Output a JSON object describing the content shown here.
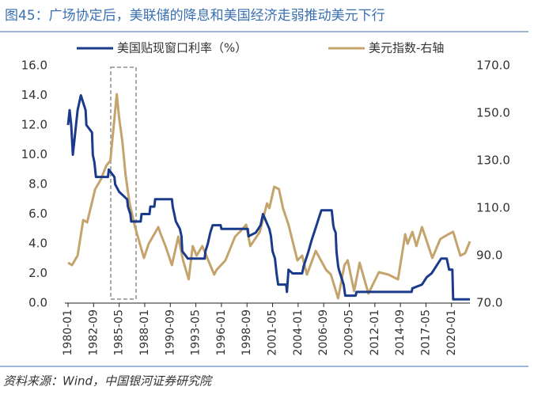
{
  "chart_data": {
    "type": "line",
    "title": "图45：广场协定后，美联储的降息和美国经济走弱推动美元下行",
    "source": "资料来源：Wind，中国银河证券研究院",
    "xlim": [
      "1980-01",
      "2021-12"
    ],
    "xticks": [
      "1980-01",
      "1982-09",
      "1985-05",
      "1988-01",
      "1990-09",
      "1993-05",
      "1996-01",
      "1998-09",
      "2001-05",
      "2004-01",
      "2006-09",
      "2009-05",
      "2012-01",
      "2014-09",
      "2017-05",
      "2020-01"
    ],
    "ylim": [
      0,
      16
    ],
    "yticks": [
      {
        "value": 0,
        "label": "0.0"
      },
      {
        "value": 2,
        "label": "2.0"
      },
      {
        "value": 4,
        "label": "4.0"
      },
      {
        "value": 6,
        "label": "6.0"
      },
      {
        "value": 8,
        "label": "8.0"
      },
      {
        "value": 10,
        "label": "10.0"
      },
      {
        "value": 12,
        "label": "12.0"
      },
      {
        "value": 14,
        "label": "14.0"
      },
      {
        "value": 16,
        "label": "16.0"
      }
    ],
    "y2lim": [
      70,
      170
    ],
    "y2ticks": [
      {
        "value": 70,
        "label": "70.0"
      },
      {
        "value": 90,
        "label": "90.0"
      },
      {
        "value": 110,
        "label": "110.0"
      },
      {
        "value": 130,
        "label": "130.0"
      },
      {
        "value": 150,
        "label": "150.0"
      },
      {
        "value": 170,
        "label": "170.0"
      }
    ],
    "series": [
      {
        "name": "美国贴现窗口利率（%）",
        "color": "#1a3a8c",
        "x": [
          "1980-01",
          "1980-03",
          "1980-05",
          "1980-07",
          "1980-09",
          "1980-11",
          "1981-01",
          "1981-05",
          "1981-11",
          "1981-12",
          "1982-07",
          "1982-08",
          "1982-10",
          "1982-12",
          "1984-03",
          "1984-04",
          "1984-11",
          "1984-12",
          "1985-05",
          "1986-03",
          "1986-04",
          "1986-07",
          "1986-08",
          "1987-08",
          "1987-09",
          "1988-07",
          "1988-08",
          "1989-01",
          "1989-02",
          "1990-11",
          "1990-12",
          "1991-02",
          "1991-04",
          "1991-09",
          "1991-11",
          "1991-12",
          "1992-07",
          "1994-04",
          "1994-05",
          "1994-08",
          "1994-11",
          "1995-02",
          "1995-12",
          "1996-01",
          "1998-10",
          "1998-11",
          "1999-08",
          "1999-11",
          "2000-02",
          "2000-03",
          "2000-05",
          "2001-01",
          "2001-03",
          "2001-05",
          "2001-08",
          "2001-09",
          "2001-10",
          "2001-12",
          "2002-10",
          "2002-11",
          "2003-01",
          "2003-06",
          "2004-06",
          "2004-08",
          "2004-11",
          "2005-02",
          "2005-06",
          "2005-09",
          "2005-12",
          "2006-03",
          "2006-06",
          "2007-07",
          "2007-08",
          "2007-09",
          "2007-10",
          "2007-12",
          "2008-01",
          "2008-03",
          "2008-04",
          "2008-10",
          "2008-12",
          "2010-01",
          "2010-02",
          "2015-11",
          "2015-12",
          "2016-12",
          "2017-03",
          "2017-06",
          "2017-12",
          "2018-03",
          "2018-06",
          "2018-09",
          "2018-12",
          "2019-07",
          "2019-08",
          "2019-09",
          "2019-10",
          "2020-02",
          "2020-03",
          "2021-12"
        ],
        "values": [
          12,
          13,
          12,
          10,
          11,
          12,
          13,
          14,
          13,
          12,
          11.5,
          10,
          9.5,
          8.5,
          8.5,
          9,
          8.5,
          8,
          7.5,
          7,
          6.5,
          6,
          5.5,
          5.5,
          6,
          6,
          6.5,
          6.5,
          7,
          7,
          6.5,
          6,
          5.5,
          5,
          4.5,
          3.5,
          3,
          3,
          3.5,
          4,
          4.75,
          5.25,
          5.25,
          5,
          5,
          4.5,
          4.75,
          5,
          5.25,
          5.5,
          6,
          5,
          4.5,
          3.5,
          3,
          2.5,
          2,
          1.25,
          1.25,
          0.75,
          2.25,
          2,
          2,
          2.5,
          3,
          3.5,
          4.25,
          4.75,
          5.25,
          5.75,
          6.25,
          6.25,
          5.75,
          5.25,
          5,
          4.75,
          3.5,
          2.5,
          2.25,
          1.25,
          0.5,
          0.5,
          0.75,
          0.75,
          1,
          1.25,
          1.5,
          1.75,
          2,
          2.25,
          2.5,
          2.75,
          3,
          3,
          2.75,
          2.5,
          2.25,
          2.25,
          0.25,
          0.25
        ]
      },
      {
        "name": "美元指数-右轴",
        "color": "#c4a46c",
        "axis": "y2",
        "x": [
          "1980-01",
          "1980-06",
          "1981-01",
          "1981-08",
          "1982-01",
          "1982-11",
          "1983-06",
          "1984-01",
          "1984-06",
          "1985-02",
          "1985-05",
          "1985-09",
          "1986-01",
          "1986-06",
          "1987-01",
          "1987-12",
          "1988-06",
          "1989-06",
          "1989-09",
          "1990-03",
          "1990-11",
          "1991-07",
          "1992-01",
          "1992-08",
          "1993-01",
          "1993-06",
          "1994-01",
          "1995-04",
          "1995-07",
          "1996-06",
          "1997-06",
          "1997-12",
          "1998-08",
          "1999-01",
          "2000-01",
          "2000-10",
          "2001-01",
          "2001-07",
          "2002-01",
          "2002-06",
          "2003-01",
          "2003-12",
          "2004-06",
          "2004-12",
          "2005-11",
          "2006-12",
          "2007-06",
          "2008-03",
          "2008-11",
          "2009-03",
          "2009-11",
          "2010-06",
          "2011-05",
          "2012-06",
          "2013-06",
          "2014-06",
          "2015-03",
          "2015-06",
          "2015-12",
          "2016-05",
          "2016-12",
          "2017-06",
          "2018-01",
          "2018-11",
          "2019-09",
          "2020-03",
          "2020-12",
          "2021-06",
          "2021-12"
        ],
        "values": [
          87,
          86,
          90,
          105,
          104,
          118,
          122,
          128,
          130,
          158,
          148,
          138,
          124,
          112,
          102,
          89,
          95,
          102,
          99,
          94,
          86,
          98,
          88,
          80,
          94,
          90,
          94,
          82,
          84,
          88,
          98,
          100,
          103,
          94,
          100,
          112,
          110,
          119,
          118,
          110,
          103,
          88,
          90,
          82,
          92,
          84,
          82,
          72,
          86,
          88,
          75,
          87,
          74,
          83,
          82,
          80,
          99,
          95,
          100,
          94,
          102,
          96,
          89,
          97,
          99,
          100,
          90,
          91,
          96
        ]
      }
    ]
  }
}
